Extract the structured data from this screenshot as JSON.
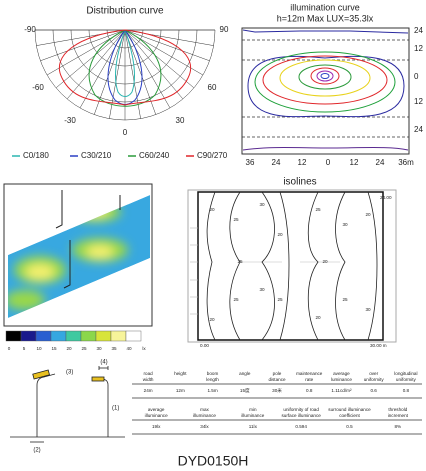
{
  "distribution_curve": {
    "title": "Distribution curve",
    "angle_labels": [
      "-90",
      "90",
      "-60",
      "60",
      "-30",
      "30",
      "0"
    ],
    "legend": [
      {
        "name": "C0/180",
        "color": "#2bb5b0"
      },
      {
        "name": "C30/210",
        "color": "#2a3fc4"
      },
      {
        "name": "C60/240",
        "color": "#2a9a3a"
      },
      {
        "name": "C90/270",
        "color": "#e0262a"
      }
    ]
  },
  "illumination_curve": {
    "title": "illumination curve",
    "subtitle": "h=12m Max LUX=35.3lx",
    "y_labels": [
      "24",
      "12",
      "0",
      "12",
      "24"
    ],
    "x_labels": [
      "36",
      "24",
      "12",
      "0",
      "12",
      "24",
      "36m"
    ]
  },
  "heatmap": {
    "scale_labels": [
      "0",
      "5",
      "10",
      "15",
      "20",
      "25",
      "30",
      "35",
      "40",
      "lx"
    ],
    "scale_colors": [
      "#000000",
      "#1a1a8c",
      "#2a5fd0",
      "#35a7e0",
      "#3fc9a0",
      "#8bd74a",
      "#d8e43a",
      "#f7f49a",
      "#ffffff"
    ]
  },
  "isolines": {
    "title": "isolines",
    "top_right": "24.00",
    "bottom_left": "0.00",
    "bottom_right": "30.00 m",
    "contour_labels": [
      "20",
      "25",
      "30",
      "25",
      "20",
      "20",
      "25",
      "30",
      "30",
      "25",
      "20",
      "20",
      "25",
      "30",
      "25",
      "20"
    ]
  },
  "pole_diagram": {
    "labels": [
      "(3)",
      "(4)",
      "(1)",
      "(2)"
    ]
  },
  "table1": {
    "headers": [
      "road width",
      "height",
      "boom length",
      "angle",
      "pole distance",
      "maintenance rate",
      "average luminance",
      "over uniformity",
      "longitudinal uniformity"
    ],
    "values": [
      "24m",
      "12m",
      "1.5m",
      "15度",
      "30米",
      "0.8",
      "1.11cd/m²",
      "0.6",
      "0.8"
    ]
  },
  "table2": {
    "headers": [
      "average illuminance",
      "max illuminance",
      "min illuminance",
      "uniformity of road surface illuminance",
      "surround illuminance coefficient",
      "threshold increment"
    ],
    "values": [
      "19lx",
      "34lx",
      "11lx",
      "0.594",
      "0.5",
      "8%"
    ]
  },
  "model": "DYD0150H"
}
